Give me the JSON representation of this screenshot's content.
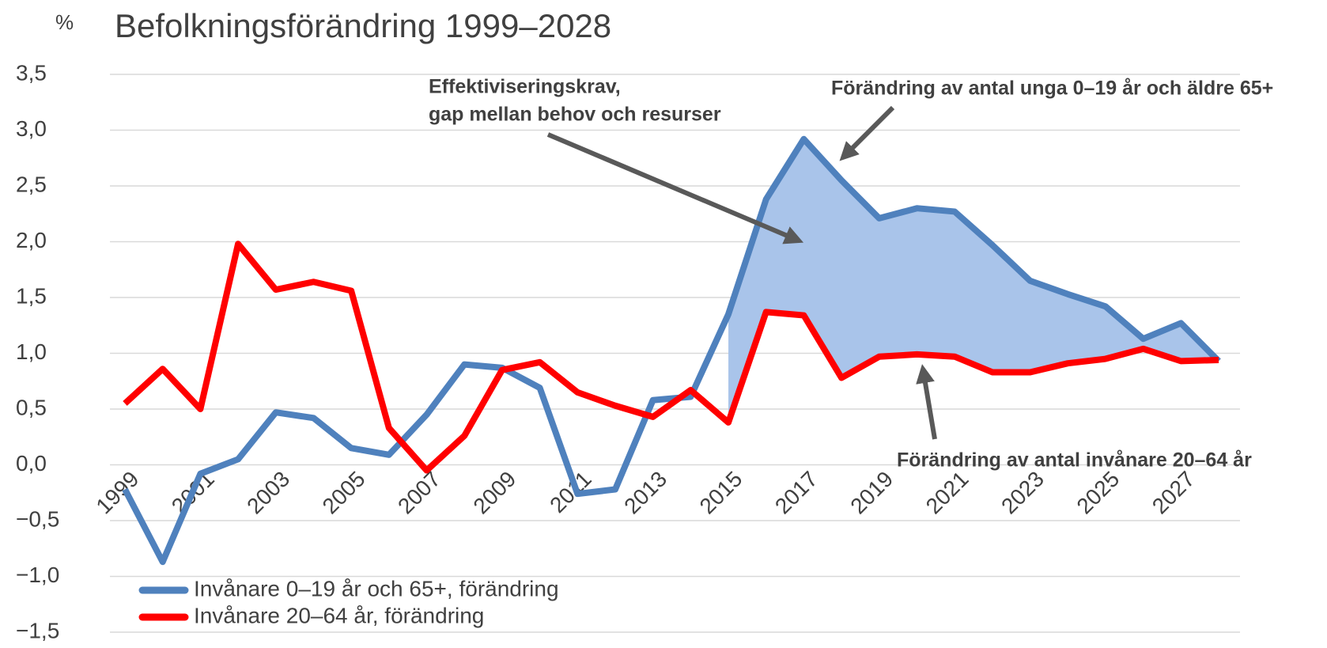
{
  "chart_data": {
    "type": "line",
    "title": "Befolkningsförändring 1999–2028",
    "y_unit": "%",
    "categories": [
      "1999",
      null,
      "2001",
      null,
      "2003",
      null,
      "2005",
      null,
      "2007",
      null,
      "2009",
      null,
      "2011",
      null,
      "2013",
      null,
      "2015",
      null,
      "2017",
      null,
      "2019",
      null,
      "2021",
      null,
      "2023",
      null,
      "2025",
      null,
      "2027",
      null
    ],
    "series": [
      {
        "name": "Invånare 0–19 år och 65+, förändring",
        "color": "#4f81bd",
        "values": [
          -0.22,
          -0.87,
          -0.08,
          0.05,
          0.47,
          0.42,
          0.15,
          0.09,
          0.45,
          0.9,
          0.87,
          0.69,
          -0.26,
          -0.22,
          0.58,
          0.61,
          1.35,
          2.38,
          2.92,
          2.55,
          2.21,
          2.3,
          2.27,
          1.97,
          1.65,
          1.53,
          1.42,
          1.13,
          1.27,
          0.93
        ]
      },
      {
        "name": "Invånare 20–64 år, förändring",
        "color": "#ff0000",
        "values": [
          0.55,
          0.86,
          0.5,
          1.98,
          1.57,
          1.64,
          1.56,
          0.33,
          -0.05,
          0.26,
          0.85,
          0.92,
          0.65,
          0.53,
          0.43,
          0.67,
          0.38,
          1.37,
          1.34,
          0.78,
          0.97,
          0.99,
          0.97,
          0.83,
          0.83,
          0.91,
          0.95,
          1.04,
          0.93,
          0.94
        ]
      }
    ],
    "fill_color": "#a9c4ea",
    "ylim": [
      -1.5,
      3.5
    ],
    "yticks": [
      {
        "value": -1.5,
        "label": "−1,5"
      },
      {
        "value": -1,
        "label": "−1,0"
      },
      {
        "value": -0.5,
        "label": "−0,5"
      },
      {
        "value": 0,
        "label": "0,0"
      },
      {
        "value": 0.5,
        "label": "0,5"
      },
      {
        "value": 1,
        "label": "1,0"
      },
      {
        "value": 1.5,
        "label": "1,5"
      },
      {
        "value": 2,
        "label": "2,0"
      },
      {
        "value": 2.5,
        "label": "2,5"
      },
      {
        "value": 3,
        "label": "3,0"
      },
      {
        "value": 3.5,
        "label": "3,5"
      }
    ],
    "grid": true,
    "legend": "bottom-left",
    "annotations": [
      "Effektiviseringskrav,",
      "gap mellan behov och resurser",
      "Förändring av antal unga 0–19 år och äldre 65+",
      "Förändring av antal invånare 20–64 år"
    ]
  }
}
